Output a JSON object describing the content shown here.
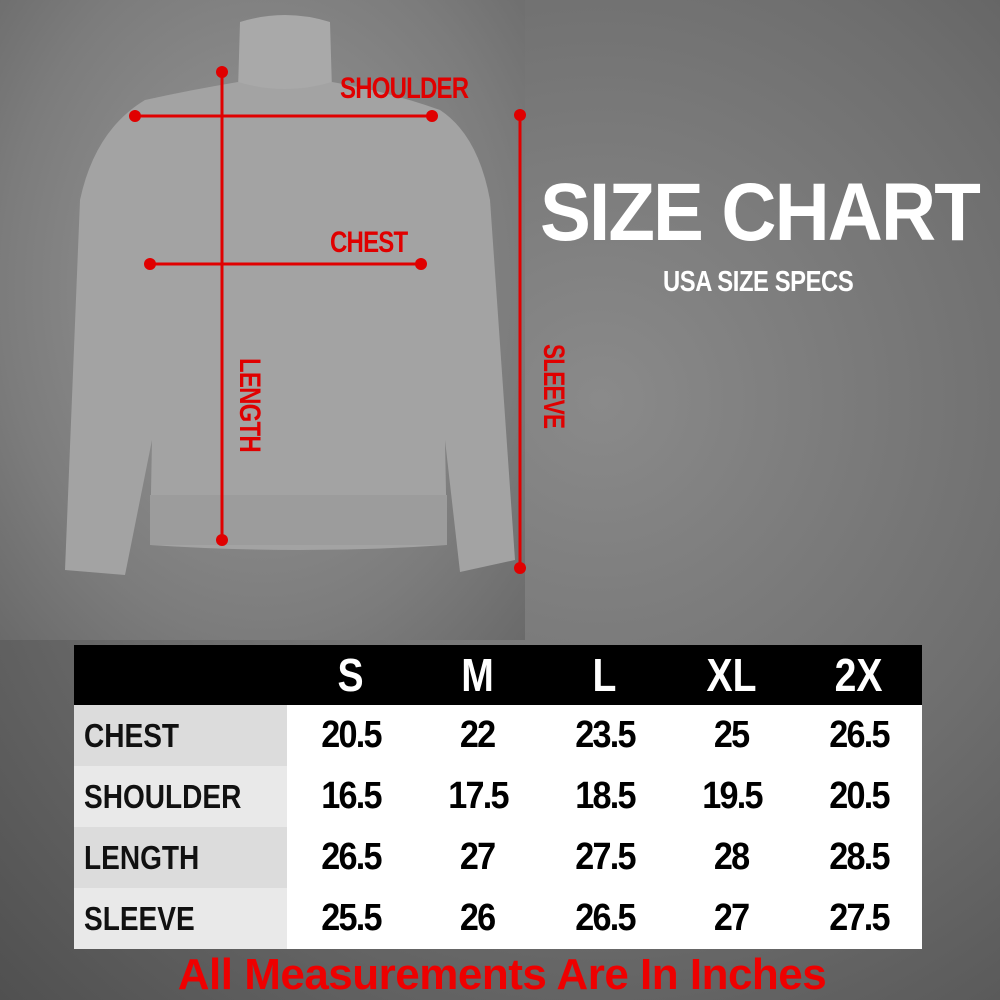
{
  "title": "SIZE CHART",
  "subtitle": "USA SIZE SPECS",
  "diagram_labels": {
    "shoulder": "SHOULDER",
    "chest": "CHEST",
    "length": "LENGTH",
    "sleeve": "SLEEVE"
  },
  "colors": {
    "marker": "#e00000",
    "header_bg": "#000000",
    "footer_text": "#ee0000"
  },
  "table": {
    "sizes": [
      "S",
      "M",
      "L",
      "XL",
      "2X"
    ],
    "rows": [
      {
        "label": "CHEST",
        "values": [
          "20.5",
          "22",
          "23.5",
          "25",
          "26.5"
        ]
      },
      {
        "label": "SHOULDER",
        "values": [
          "16.5",
          "17.5",
          "18.5",
          "19.5",
          "20.5"
        ]
      },
      {
        "label": "LENGTH",
        "values": [
          "26.5",
          "27",
          "27.5",
          "28",
          "28.5"
        ]
      },
      {
        "label": "SLEEVE",
        "values": [
          "25.5",
          "26",
          "26.5",
          "27",
          "27.5"
        ]
      }
    ]
  },
  "footer": "All Measurements Are In Inches"
}
